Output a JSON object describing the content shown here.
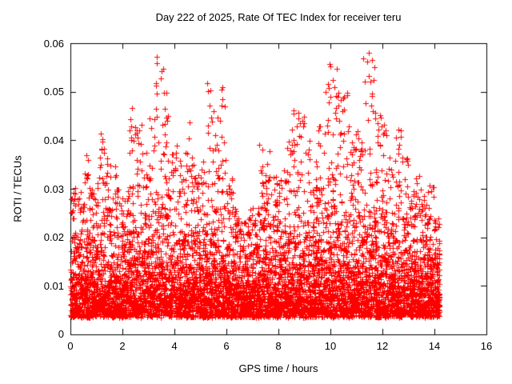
{
  "chart_data": {
    "type": "scatter",
    "title": "Day 222 of 2025, Rate Of TEC Index for receiver teru",
    "xlabel": "GPS time / hours",
    "ylabel": "ROTI / TECUs",
    "xlim": [
      0,
      16
    ],
    "ylim": [
      0,
      0.06
    ],
    "xticks": [
      0,
      2,
      4,
      6,
      8,
      10,
      12,
      14,
      16
    ],
    "yticks": [
      0,
      0.01,
      0.02,
      0.03,
      0.04,
      0.05,
      0.06
    ],
    "xtick_labels": [
      "0",
      "2",
      "4",
      "6",
      "8",
      "10",
      "12",
      "14",
      "16"
    ],
    "ytick_labels": [
      "0",
      "0.01",
      "0.02",
      "0.03",
      "0.04",
      "0.05",
      "0.06"
    ],
    "grid": false,
    "legend": "none",
    "marker": "plus",
    "marker_color": "#ff0000",
    "border_color": "#000000",
    "distribution": {
      "comment": "dense scatter of ROTI values; envelope of max ROTI per 0.25h bin read from the plot",
      "seed": 42,
      "bin_hours": 0.25,
      "x_start": 0,
      "x_end": 14.2,
      "points_per_bin": 115,
      "tail_points_per_bin": 7,
      "y_floor": 0.0035,
      "exp_mean_base": 0.0045,
      "exp_mean_env_coef": 0.09,
      "envelope_max_per_bin": [
        0.032,
        0.03,
        0.037,
        0.03,
        0.042,
        0.039,
        0.035,
        0.03,
        0.031,
        0.048,
        0.044,
        0.038,
        0.045,
        0.058,
        0.055,
        0.04,
        0.039,
        0.038,
        0.045,
        0.033,
        0.036,
        0.052,
        0.047,
        0.052,
        0.033,
        0.026,
        0.024,
        0.026,
        0.028,
        0.04,
        0.038,
        0.033,
        0.035,
        0.042,
        0.049,
        0.046,
        0.04,
        0.037,
        0.043,
        0.056,
        0.057,
        0.051,
        0.05,
        0.042,
        0.044,
        0.058,
        0.057,
        0.047,
        0.044,
        0.037,
        0.044,
        0.037,
        0.03,
        0.033,
        0.029,
        0.031,
        0.024
      ]
    }
  }
}
